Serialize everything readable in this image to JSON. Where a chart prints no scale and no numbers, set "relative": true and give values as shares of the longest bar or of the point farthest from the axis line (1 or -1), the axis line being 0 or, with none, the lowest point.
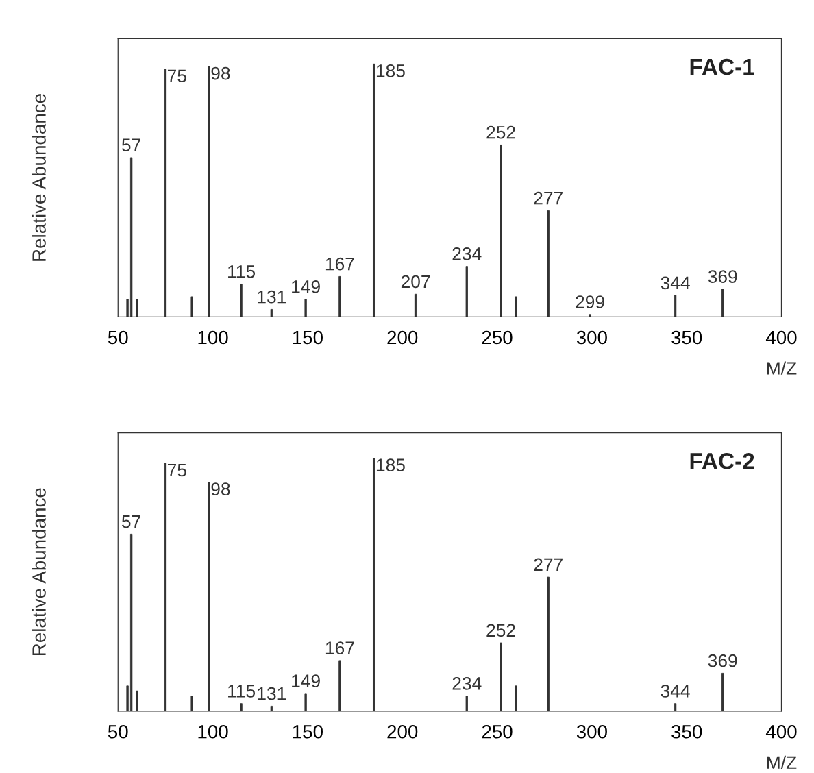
{
  "chart_data": [
    {
      "type": "bar",
      "title": "FAC-1",
      "xlabel": "M/Z",
      "ylabel": "Relative Abundance",
      "relative": true,
      "color": "#333333",
      "x": [
        55,
        57,
        60,
        75,
        89,
        98,
        115,
        131,
        149,
        167,
        185,
        207,
        234,
        252,
        260,
        277,
        299,
        344,
        369
      ],
      "values": [
        0.07,
        0.63,
        0.07,
        0.98,
        0.08,
        0.99,
        0.13,
        0.03,
        0.07,
        0.16,
        1.0,
        0.09,
        0.2,
        0.68,
        0.08,
        0.42,
        0.01,
        0.085,
        0.11
      ],
      "annotations": [
        {
          "text": "57",
          "x": 57,
          "y": 0.63
        },
        {
          "text": "75",
          "x": 75,
          "y": 0.98
        },
        {
          "text": "98",
          "x": 98,
          "y": 0.99
        },
        {
          "text": "115",
          "x": 115,
          "y": 0.13
        },
        {
          "text": "131",
          "x": 131,
          "y": 0.03
        },
        {
          "text": "149",
          "x": 149,
          "y": 0.07
        },
        {
          "text": "167",
          "x": 167,
          "y": 0.16
        },
        {
          "text": "185",
          "x": 185,
          "y": 1.0
        },
        {
          "text": "207",
          "x": 207,
          "y": 0.09
        },
        {
          "text": "234",
          "x": 234,
          "y": 0.2
        },
        {
          "text": "252",
          "x": 252,
          "y": 0.68
        },
        {
          "text": "277",
          "x": 277,
          "y": 0.42
        },
        {
          "text": "299",
          "x": 299,
          "y": 0.01
        },
        {
          "text": "344",
          "x": 344,
          "y": 0.085
        },
        {
          "text": "369",
          "x": 369,
          "y": 0.11
        }
      ],
      "xlim": [
        50,
        400
      ],
      "xticks": [
        50,
        100,
        150,
        200,
        250,
        300,
        350,
        400
      ],
      "grid": false
    },
    {
      "type": "bar",
      "title": "FAC-2",
      "xlabel": "M/Z",
      "ylabel": "Relative Abundance",
      "relative": true,
      "color": "#333333",
      "x": [
        55,
        57,
        60,
        75,
        89,
        98,
        115,
        131,
        149,
        167,
        185,
        234,
        252,
        260,
        277,
        344,
        369
      ],
      "values": [
        0.1,
        0.7,
        0.08,
        0.98,
        0.06,
        0.905,
        0.03,
        0.02,
        0.07,
        0.2,
        1.0,
        0.06,
        0.27,
        0.1,
        0.53,
        0.03,
        0.15
      ],
      "annotations": [
        {
          "text": "57",
          "x": 57,
          "y": 0.7
        },
        {
          "text": "75",
          "x": 75,
          "y": 0.98
        },
        {
          "text": "98",
          "x": 98,
          "y": 0.905
        },
        {
          "text": "115",
          "x": 115,
          "y": 0.03
        },
        {
          "text": "131",
          "x": 131,
          "y": 0.02
        },
        {
          "text": "149",
          "x": 149,
          "y": 0.07
        },
        {
          "text": "167",
          "x": 167,
          "y": 0.2
        },
        {
          "text": "185",
          "x": 185,
          "y": 1.0
        },
        {
          "text": "234",
          "x": 234,
          "y": 0.06
        },
        {
          "text": "252",
          "x": 252,
          "y": 0.27
        },
        {
          "text": "277",
          "x": 277,
          "y": 0.53
        },
        {
          "text": "344",
          "x": 344,
          "y": 0.03
        },
        {
          "text": "369",
          "x": 369,
          "y": 0.15
        }
      ],
      "xlim": [
        50,
        400
      ],
      "xticks": [
        50,
        100,
        150,
        200,
        250,
        300,
        350,
        400
      ],
      "grid": false
    }
  ]
}
